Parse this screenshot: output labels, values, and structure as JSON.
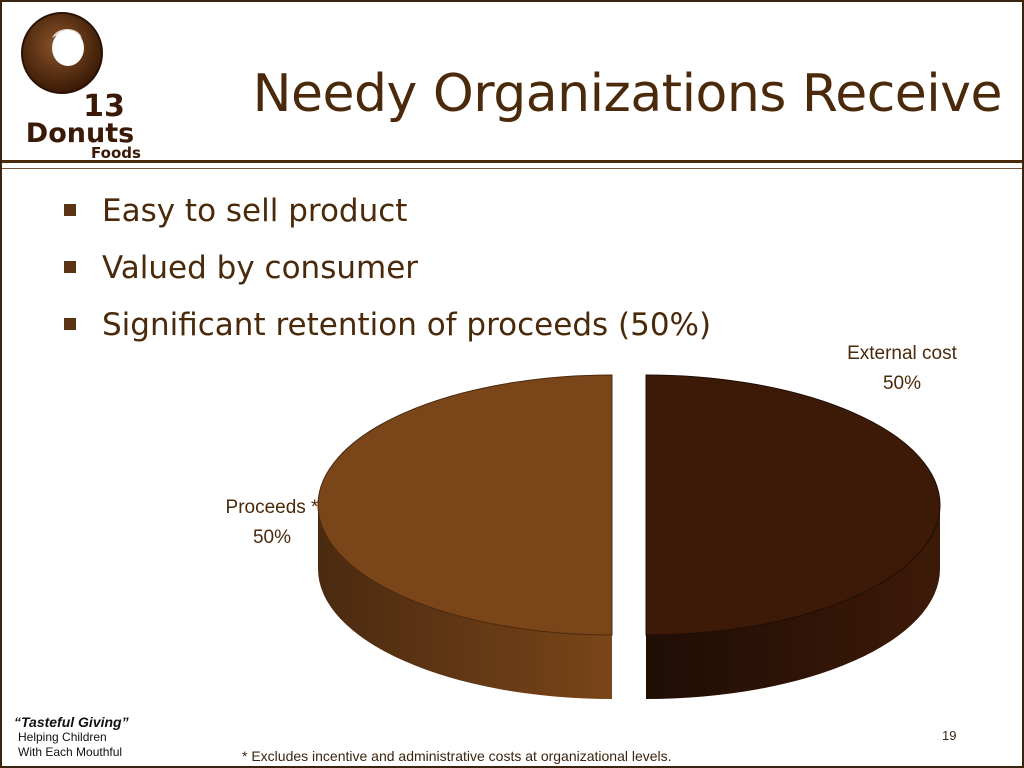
{
  "slide": {
    "title": "Needy Organizations Receive",
    "bullets": [
      "Easy to sell product",
      "Valued by consumer",
      "Significant retention of proceeds (50%)"
    ],
    "logo": {
      "line1": "13",
      "line2": "Donuts",
      "line3": "Foods"
    },
    "tagline": {
      "line1": "“Tasteful Giving”",
      "line2": "Helping Children",
      "line3": "With Each Mouthful"
    },
    "footnote": "* Excludes incentive and administrative costs at organizational levels.",
    "page_number": "19"
  },
  "chart_data": {
    "type": "pie",
    "title": "",
    "slices": [
      {
        "label": "External cost",
        "value": 50,
        "value_label": "50%",
        "color": "#3d1a08",
        "side_color": "#1f0d04",
        "exploded": true
      },
      {
        "label": "Proceeds *",
        "value": 50,
        "value_label": "50%",
        "color": "#7a4518",
        "side_color": "#4a2a10",
        "exploded": true
      }
    ],
    "style": "3d-exploded",
    "legend": "none"
  },
  "colors": {
    "primary_text": "#4a2a0a",
    "border": "#3b2410"
  }
}
